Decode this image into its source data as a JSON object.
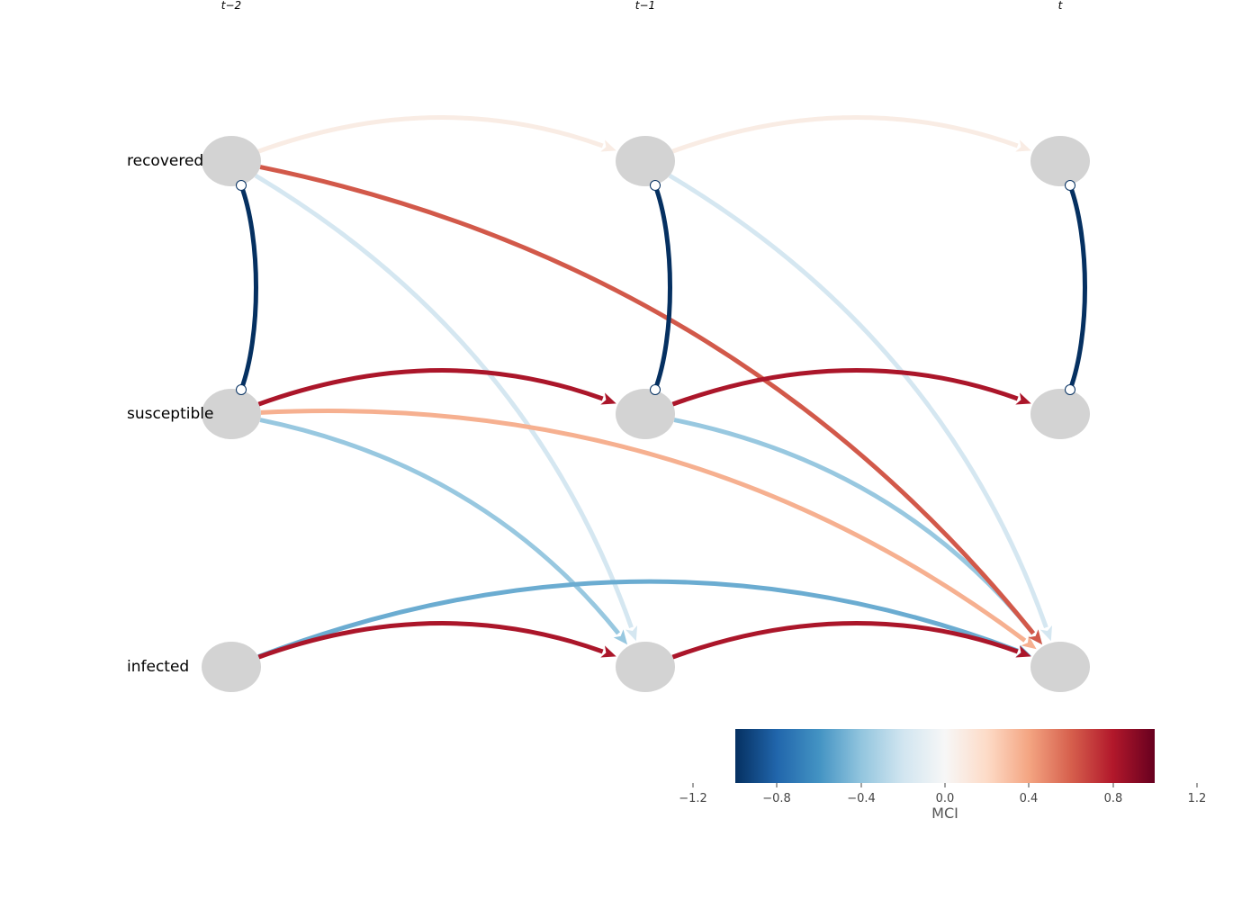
{
  "time_labels": [
    "t−2",
    "t−1",
    "t"
  ],
  "variables": [
    "recovered",
    "susceptible",
    "infected"
  ],
  "colorbar": {
    "label": "MCI",
    "ticks": [
      "−1.2",
      "−0.8",
      "−0.4",
      "0.0",
      "0.4",
      "0.8",
      "1.2"
    ],
    "range": [
      -1.0,
      1.0
    ],
    "colors": [
      "#053061",
      "#2166ac",
      "#4393c3",
      "#92c5de",
      "#d1e5f0",
      "#f7f7f7",
      "#fddbc7",
      "#f4a582",
      "#d6604d",
      "#b2182b",
      "#67001f"
    ]
  },
  "links": {
    "lagged": [
      {
        "from": "recovered",
        "from_lag": 2,
        "to": "recovered",
        "to_lag": 1,
        "mci": 0.08
      },
      {
        "from": "recovered",
        "from_lag": 1,
        "to": "recovered",
        "to_lag": 0,
        "mci": 0.08
      },
      {
        "from": "susceptible",
        "from_lag": 2,
        "to": "susceptible",
        "to_lag": 1,
        "mci": 0.82
      },
      {
        "from": "susceptible",
        "from_lag": 1,
        "to": "susceptible",
        "to_lag": 0,
        "mci": 0.82
      },
      {
        "from": "infected",
        "from_lag": 2,
        "to": "infected",
        "to_lag": 1,
        "mci": 0.82
      },
      {
        "from": "infected",
        "from_lag": 1,
        "to": "infected",
        "to_lag": 0,
        "mci": 0.82
      },
      {
        "from": "recovered",
        "from_lag": 2,
        "to": "infected",
        "to_lag": 0,
        "mci": 0.62
      },
      {
        "from": "recovered",
        "from_lag": 2,
        "to": "infected",
        "to_lag": 1,
        "mci": -0.18
      },
      {
        "from": "recovered",
        "from_lag": 1,
        "to": "infected",
        "to_lag": 0,
        "mci": -0.18
      },
      {
        "from": "susceptible",
        "from_lag": 2,
        "to": "infected",
        "to_lag": 1,
        "mci": -0.38
      },
      {
        "from": "susceptible",
        "from_lag": 1,
        "to": "infected",
        "to_lag": 0,
        "mci": -0.38
      },
      {
        "from": "susceptible",
        "from_lag": 2,
        "to": "infected",
        "to_lag": 0,
        "mci": 0.36
      },
      {
        "from": "infected",
        "from_lag": 2,
        "to": "infected",
        "to_lag": 0,
        "mci": -0.5
      }
    ],
    "contemporaneous": [
      {
        "a": "recovered",
        "b": "susceptible",
        "mci": -1.0
      }
    ]
  }
}
